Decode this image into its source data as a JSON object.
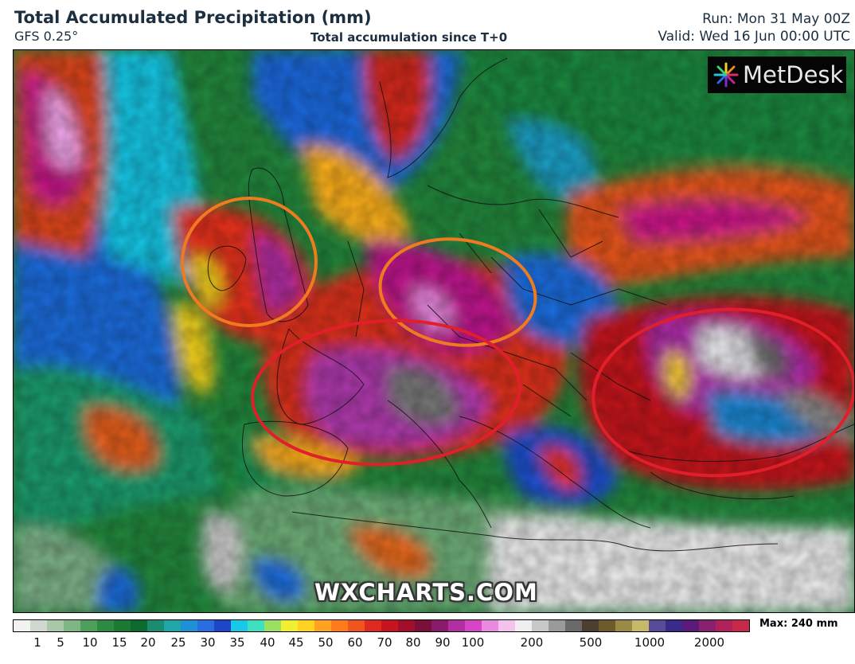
{
  "header": {
    "title": "Total Accumulated Precipitation (mm)",
    "model": "GFS 0.25°",
    "subtitle": "Total accumulation since T+0",
    "run": "Run: Mon 31 May 00Z",
    "valid": "Valid: Wed 16 Jun 00:00 UTC"
  },
  "logo": {
    "text": "MetDesk",
    "icon": "starburst-logo-icon"
  },
  "watermark": "WXCHARTS.COM",
  "legend": {
    "max_label": "Max: 240 mm",
    "ticks": [
      "1",
      "5",
      "10",
      "15",
      "20",
      "25",
      "30",
      "35",
      "40",
      "45",
      "50",
      "60",
      "70",
      "80",
      "90",
      "100",
      "200",
      "500",
      "1000",
      "2000"
    ],
    "colors": [
      "#f2f2f2",
      "#d0d8d0",
      "#a9c7a9",
      "#7fb485",
      "#4f9f5c",
      "#2e8a43",
      "#1d7a35",
      "#0f6a2f",
      "#1b8c6f",
      "#1fa6a6",
      "#1f8fd6",
      "#2a6de0",
      "#1f45c8",
      "#17c8e8",
      "#3fe0c0",
      "#9be060",
      "#f0f030",
      "#ffd21f",
      "#ffa21f",
      "#ff7a1a",
      "#f2541f",
      "#e02a1f",
      "#c8141f",
      "#a30f2a",
      "#7a0f3a",
      "#8a1b6a",
      "#b32ea3",
      "#d645c8",
      "#e88ae0",
      "#f3c3ee",
      "#f0eef0",
      "#c8c8c8",
      "#9a9a9a",
      "#6a6a6a",
      "#4d3f2f",
      "#6e5a2a",
      "#9b8a45",
      "#c7b86a",
      "#5a4a9a",
      "#3a2a8a",
      "#5a1a7a",
      "#8a2070",
      "#b0205a",
      "#c8284a"
    ],
    "arrow_color": "#b8204a"
  },
  "annotations": [
    "ireland-orange-ellipse",
    "germany-orange-ellipse",
    "france-red-ellipse",
    "black-sea-red-ellipse"
  ]
}
